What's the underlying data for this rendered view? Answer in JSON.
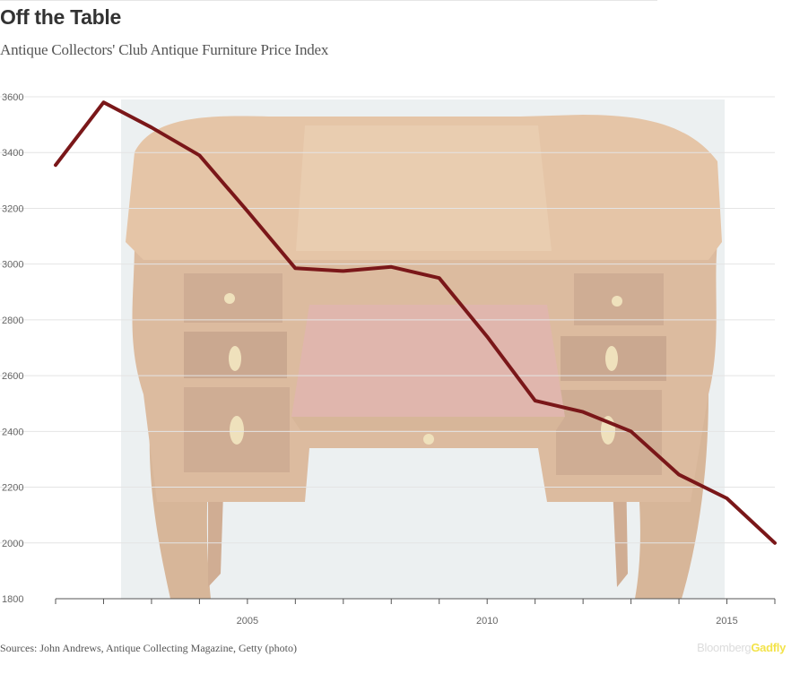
{
  "header": {
    "title": "Off the Table",
    "subtitle": "Antique Collectors' Club Antique Furniture Price Index"
  },
  "footer": {
    "source": "Sources: John Andrews, Antique Collecting Magazine, Getty (photo)",
    "brand_part1": "Bloomberg",
    "brand_part2": "Gadfly"
  },
  "colors": {
    "line": "#7a1719",
    "wood_dark": "#a86a3c",
    "wood_light": "#d9a56d",
    "leather": "#c77a6a",
    "photo_bg": "#dde3e5",
    "overlay": "#ffffff"
  },
  "background_image": {
    "description_icon": "antique-desk-photo"
  },
  "chart_data": {
    "type": "line",
    "title": "Antique Collectors' Club Antique Furniture Price Index",
    "xlabel": "",
    "ylabel": "",
    "xlim": [
      2001,
      2016
    ],
    "ylim": [
      1800,
      3600
    ],
    "y_ticks": [
      1800,
      2000,
      2200,
      2400,
      2600,
      2800,
      3000,
      3200,
      3400,
      3600
    ],
    "x_tick_labels": [
      2005,
      2010,
      2015
    ],
    "x_minor_ticks": [
      2001,
      2002,
      2003,
      2004,
      2005,
      2006,
      2007,
      2008,
      2009,
      2010,
      2011,
      2012,
      2013,
      2014,
      2015,
      2016
    ],
    "grid": true,
    "series": [
      {
        "x": [
          2001,
          2002,
          2003,
          2004,
          2005,
          2006,
          2007,
          2008,
          2009,
          2010,
          2011,
          2012,
          2013,
          2014,
          2015,
          2016
        ],
        "values": [
          3355,
          3580,
          3490,
          3390,
          3190,
          2985,
          2975,
          2990,
          2950,
          2740,
          2510,
          2470,
          2400,
          2245,
          2160,
          2000
        ]
      }
    ]
  }
}
